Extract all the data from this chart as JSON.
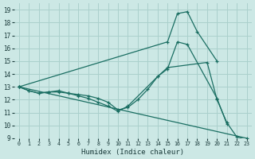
{
  "xlabel": "Humidex (Indice chaleur)",
  "bg_color": "#cce8e5",
  "grid_color": "#aad0cc",
  "line_color": "#1a6e62",
  "xlim": [
    -0.5,
    23.5
  ],
  "ylim": [
    9,
    19.5
  ],
  "xticks": [
    0,
    1,
    2,
    3,
    4,
    5,
    6,
    7,
    8,
    9,
    10,
    11,
    12,
    13,
    14,
    15,
    16,
    17,
    18,
    19,
    20,
    21,
    22,
    23
  ],
  "yticks": [
    9,
    10,
    11,
    12,
    13,
    14,
    15,
    16,
    17,
    18,
    19
  ],
  "series": [
    {
      "x": [
        0,
        23
      ],
      "y": [
        13,
        9
      ]
    },
    {
      "x": [
        0,
        15,
        16,
        17,
        18,
        20
      ],
      "y": [
        13,
        16.5,
        18.7,
        18.85,
        17.3,
        15.0
      ]
    },
    {
      "x": [
        0,
        1,
        2,
        3,
        4,
        5,
        6,
        7,
        8,
        9,
        10,
        11,
        14,
        15,
        16,
        17,
        20,
        21
      ],
      "y": [
        13,
        12.7,
        12.5,
        12.6,
        12.6,
        12.5,
        12.3,
        12.1,
        11.8,
        11.5,
        11.1,
        11.5,
        13.8,
        14.4,
        16.5,
        16.3,
        12.1,
        10.1
      ]
    },
    {
      "x": [
        0,
        1,
        2,
        3,
        4,
        5,
        6,
        7,
        8,
        9,
        10,
        11,
        12,
        13,
        14,
        15,
        19,
        20,
        21,
        22,
        23
      ],
      "y": [
        13,
        12.7,
        12.5,
        12.6,
        12.7,
        12.5,
        12.4,
        12.3,
        12.1,
        11.8,
        11.2,
        11.4,
        12.0,
        12.8,
        13.8,
        14.5,
        14.9,
        12.0,
        10.2,
        9.1,
        8.9
      ]
    }
  ]
}
